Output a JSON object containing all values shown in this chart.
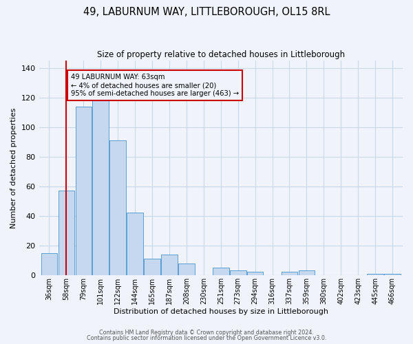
{
  "title": "49, LABURNUM WAY, LITTLEBOROUGH, OL15 8RL",
  "subtitle": "Size of property relative to detached houses in Littleborough",
  "xlabel": "Distribution of detached houses by size in Littleborough",
  "ylabel": "Number of detached properties",
  "bar_labels": [
    "36sqm",
    "58sqm",
    "79sqm",
    "101sqm",
    "122sqm",
    "144sqm",
    "165sqm",
    "187sqm",
    "208sqm",
    "230sqm",
    "251sqm",
    "273sqm",
    "294sqm",
    "316sqm",
    "337sqm",
    "359sqm",
    "380sqm",
    "402sqm",
    "423sqm",
    "445sqm",
    "466sqm"
  ],
  "bar_heights": [
    15,
    57,
    114,
    118,
    91,
    42,
    11,
    14,
    8,
    0,
    5,
    3,
    2,
    0,
    2,
    3,
    0,
    0,
    0,
    1,
    1
  ],
  "bar_color": "#c5d8f0",
  "bar_edge_color": "#5a9fd4",
  "ylim": [
    0,
    145
  ],
  "yticks": [
    0,
    20,
    40,
    60,
    80,
    100,
    120,
    140
  ],
  "vline_x_index": 1,
  "vline_color": "#cc0000",
  "annotation_line1": "49 LABURNUM WAY: 63sqm",
  "annotation_line2": "← 4% of detached houses are smaller (20)",
  "annotation_line3": "95% of semi-detached houses are larger (463) →",
  "annotation_box_color": "#cc0000",
  "footer_line1": "Contains HM Land Registry data © Crown copyright and database right 2024.",
  "footer_line2": "Contains public sector information licensed under the Open Government Licence v3.0.",
  "background_color": "#f0f4fa",
  "grid_color": "#c8d8e8"
}
